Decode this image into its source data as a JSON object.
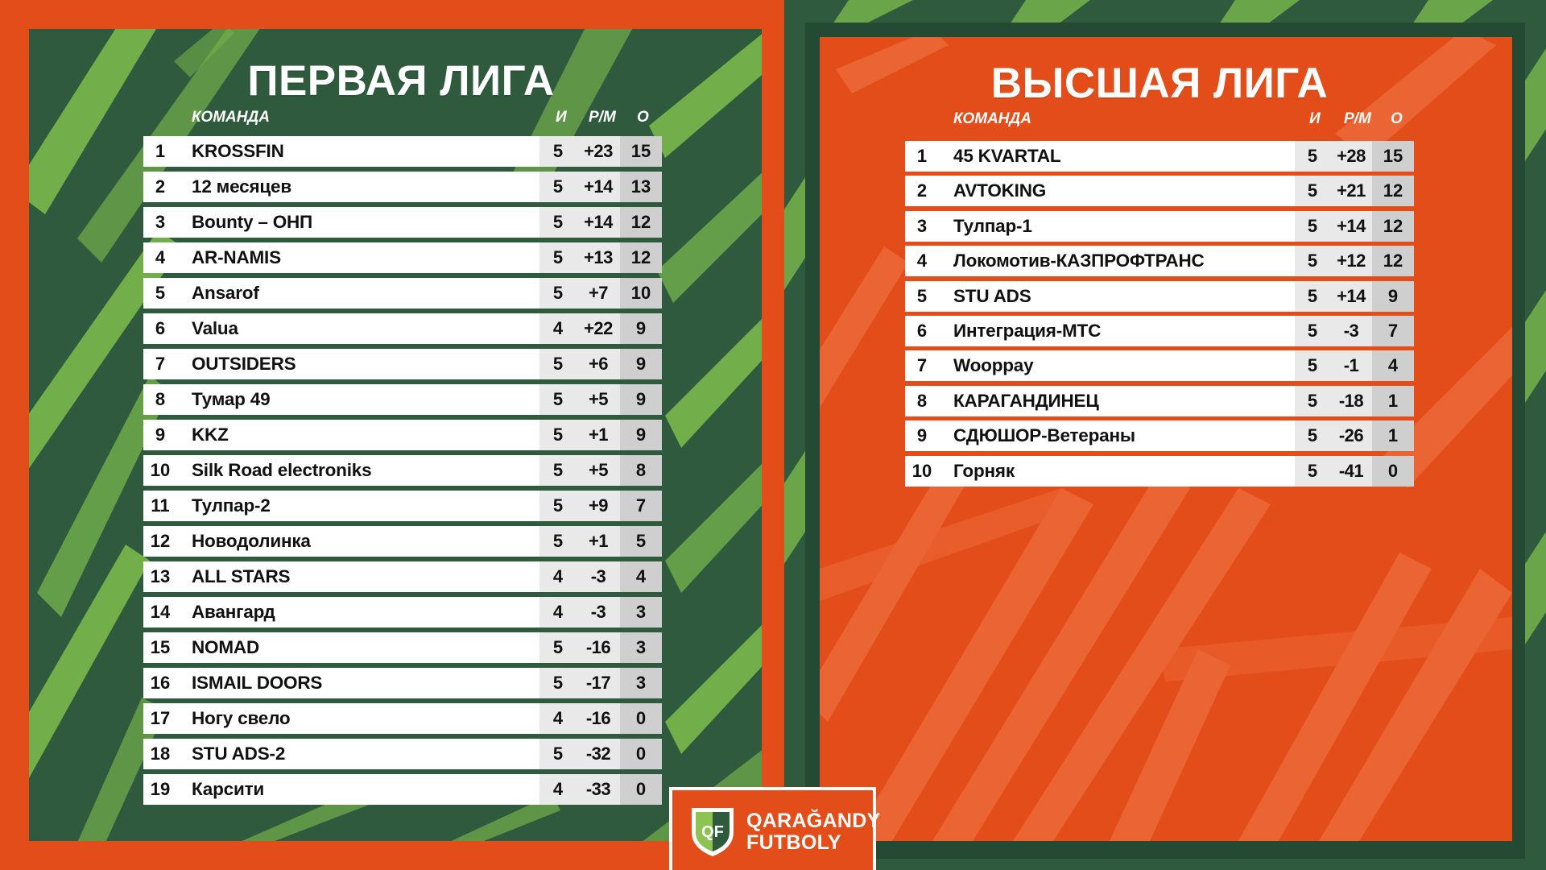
{
  "first_league": {
    "title": "ПЕРВАЯ ЛИГА",
    "headers": {
      "team": "КОМАНДА",
      "games": "И",
      "goal_diff": "Р/М",
      "points": "О"
    },
    "rows": [
      {
        "pos": "1",
        "team": "KROSSFIN",
        "g": "5",
        "gd": "+23",
        "pts": "15"
      },
      {
        "pos": "2",
        "team": "12 месяцев",
        "g": "5",
        "gd": "+14",
        "pts": "13"
      },
      {
        "pos": "3",
        "team": "Bounty – ОНП",
        "g": "5",
        "gd": "+14",
        "pts": "12"
      },
      {
        "pos": "4",
        "team": "AR-NAMIS",
        "g": "5",
        "gd": "+13",
        "pts": "12"
      },
      {
        "pos": "5",
        "team": "Ansarof",
        "g": "5",
        "gd": "+7",
        "pts": "10"
      },
      {
        "pos": "6",
        "team": "Valua",
        "g": "4",
        "gd": "+22",
        "pts": "9"
      },
      {
        "pos": "7",
        "team": "OUTSIDERS",
        "g": "5",
        "gd": "+6",
        "pts": "9"
      },
      {
        "pos": "8",
        "team": "Тумар 49",
        "g": "5",
        "gd": "+5",
        "pts": "9"
      },
      {
        "pos": "9",
        "team": "KKZ",
        "g": "5",
        "gd": "+1",
        "pts": "9"
      },
      {
        "pos": "10",
        "team": "Silk Road electroniks",
        "g": "5",
        "gd": "+5",
        "pts": "8"
      },
      {
        "pos": "11",
        "team": "Тулпар-2",
        "g": "5",
        "gd": "+9",
        "pts": "7"
      },
      {
        "pos": "12",
        "team": "Новодолинка",
        "g": "5",
        "gd": "+1",
        "pts": "5"
      },
      {
        "pos": "13",
        "team": "ALL STARS",
        "g": "4",
        "gd": "-3",
        "pts": "4"
      },
      {
        "pos": "14",
        "team": "Авангард",
        "g": "4",
        "gd": "-3",
        "pts": "3"
      },
      {
        "pos": "15",
        "team": "NOMAD",
        "g": "5",
        "gd": "-16",
        "pts": "3"
      },
      {
        "pos": "16",
        "team": "ISMAIL DOORS",
        "g": "5",
        "gd": "-17",
        "pts": "3"
      },
      {
        "pos": "17",
        "team": "Ногу свело",
        "g": "4",
        "gd": "-16",
        "pts": "0"
      },
      {
        "pos": "18",
        "team": "STU ADS-2",
        "g": "5",
        "gd": "-32",
        "pts": "0"
      },
      {
        "pos": "19",
        "team": "Карсити",
        "g": "4",
        "gd": "-33",
        "pts": "0"
      }
    ]
  },
  "top_league": {
    "title": "ВЫСШАЯ ЛИГА",
    "headers": {
      "team": "КОМАНДА",
      "games": "И",
      "goal_diff": "Р/М",
      "points": "О"
    },
    "rows": [
      {
        "pos": "1",
        "team": "45 KVARTAL",
        "g": "5",
        "gd": "+28",
        "pts": "15"
      },
      {
        "pos": "2",
        "team": "AVTOKING",
        "g": "5",
        "gd": "+21",
        "pts": "12"
      },
      {
        "pos": "3",
        "team": "Тулпар-1",
        "g": "5",
        "gd": "+14",
        "pts": "12"
      },
      {
        "pos": "4",
        "team": "Локомотив-КАЗПРОФТРАНС",
        "g": "5",
        "gd": "+12",
        "pts": "12"
      },
      {
        "pos": "5",
        "team": "STU ADS",
        "g": "5",
        "gd": "+14",
        "pts": "9"
      },
      {
        "pos": "6",
        "team": "Интеграция-МТС",
        "g": "5",
        "gd": "-3",
        "pts": "7"
      },
      {
        "pos": "7",
        "team": "Wooppay",
        "g": "5",
        "gd": "-1",
        "pts": "4"
      },
      {
        "pos": "8",
        "team": "КАРАГАНДИНЕЦ",
        "g": "5",
        "gd": "-18",
        "pts": "1"
      },
      {
        "pos": "9",
        "team": "СДЮШОР-Ветераны",
        "g": "5",
        "gd": "-26",
        "pts": "1"
      },
      {
        "pos": "10",
        "team": "Горняк",
        "g": "5",
        "gd": "-41",
        "pts": "0"
      }
    ]
  },
  "logo": {
    "line1": "QARAĞANDY",
    "line2": "FUTBOLY",
    "shield_letters": "QF"
  },
  "colors": {
    "orange": "#e34d19",
    "dark_green": "#2f5a3e",
    "light_green": "#8dc353",
    "white": "#ffffff"
  }
}
